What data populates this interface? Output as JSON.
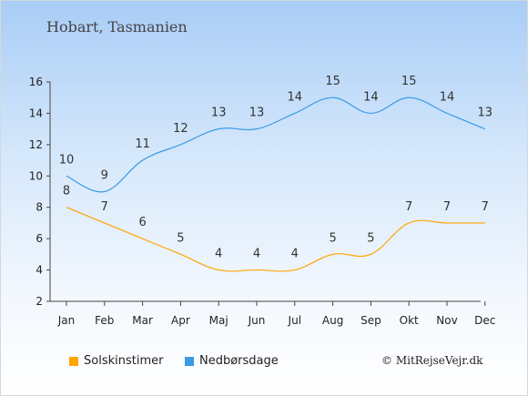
{
  "title": "Hobart, Tasmanien",
  "copyright": "© MitRejseVejr.dk",
  "colors": {
    "sun": "#ffa500",
    "rain": "#3a9be5"
  },
  "chart_data": {
    "type": "line",
    "categories": [
      "Jan",
      "Feb",
      "Mar",
      "Apr",
      "Maj",
      "Jun",
      "Jul",
      "Aug",
      "Sep",
      "Okt",
      "Nov",
      "Dec"
    ],
    "ylim": [
      2,
      16
    ],
    "yticks": [
      2,
      4,
      6,
      8,
      10,
      12,
      14,
      16
    ],
    "grid": false,
    "legend": "bottom",
    "series": [
      {
        "name": "Solskinstimer",
        "values": [
          8,
          7,
          6,
          5,
          4,
          4,
          4,
          5,
          5,
          7,
          7,
          7
        ]
      },
      {
        "name": "Nedbørsdage",
        "values": [
          10,
          9,
          11,
          12,
          13,
          13,
          14,
          15,
          14,
          15,
          14,
          13
        ]
      }
    ]
  }
}
